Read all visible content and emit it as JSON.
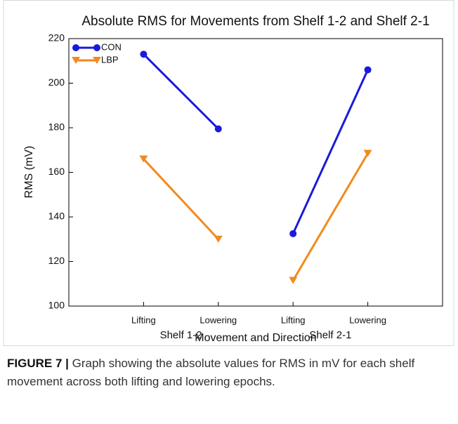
{
  "chart_data": {
    "type": "line",
    "title": "Absolute RMS for Movements from Shelf 1-2 and Shelf 2-1",
    "categories": [
      "Lifting",
      "Lowering",
      "Lifting",
      "Lowering"
    ],
    "group_labels": [
      "Shelf 1-2",
      "Shelf 2-1"
    ],
    "series": [
      {
        "name": "CON",
        "color": "#1a1adb",
        "marker": "circle",
        "values": [
          213,
          179.5,
          132.5,
          206
        ]
      },
      {
        "name": "LBP",
        "color": "#f28a1c",
        "marker": "triangle-down",
        "values": [
          166,
          130,
          111.5,
          168.5
        ]
      }
    ],
    "xlabel": "Movement and Direction",
    "ylabel": "RMS (mV)",
    "ylim": [
      100,
      220
    ],
    "yticks": [
      100,
      120,
      140,
      160,
      180,
      200,
      220
    ],
    "legend": "upper left"
  },
  "caption": {
    "label": "FIGURE 7 |",
    "text": "Graph showing the absolute values for RMS in mV for each shelf movement across both lifting and lowering epochs."
  }
}
